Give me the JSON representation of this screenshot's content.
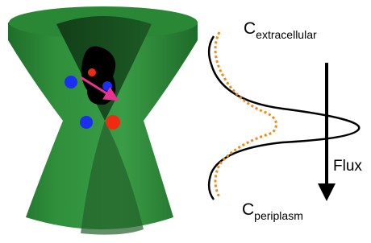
{
  "labels": {
    "top": {
      "main": "C",
      "sub": "extracellular"
    },
    "bottom": {
      "main": "C",
      "sub": "periplasm"
    },
    "flux": "Flux"
  }
}
